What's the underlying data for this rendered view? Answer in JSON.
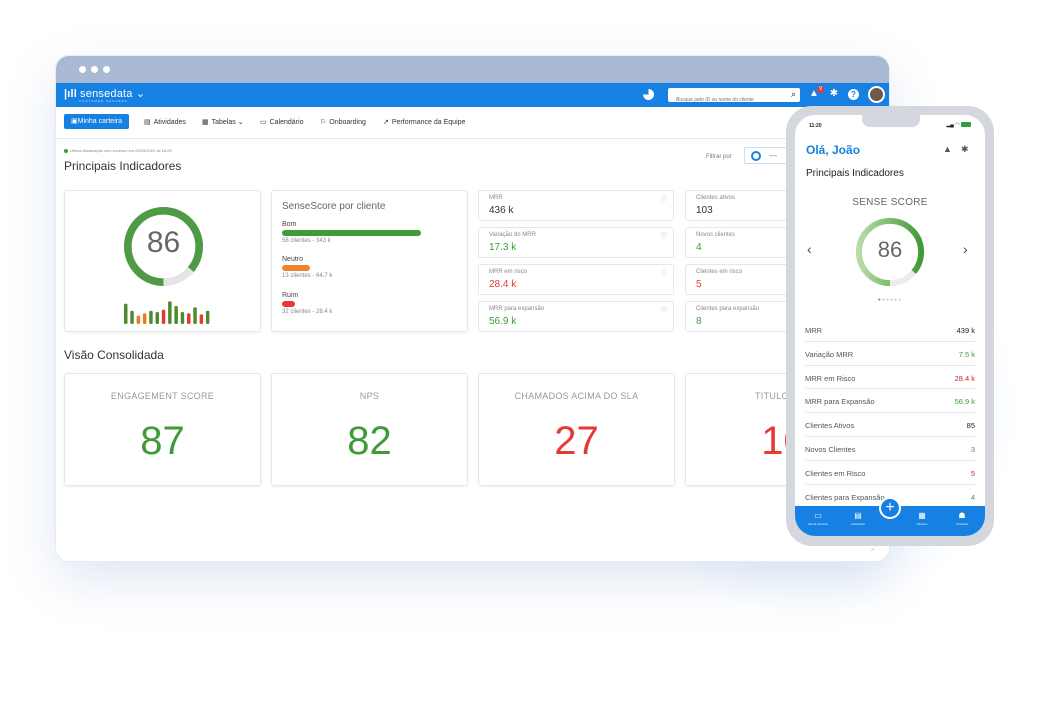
{
  "app": {
    "brand": "sensedata",
    "brand_caret": "⌄",
    "brand_sub": "CUSTOMER SUCCESS",
    "search_placeholder": "Busque pelo ID ou nome do cliente",
    "notification_count": "9"
  },
  "nav": [
    {
      "label": "Minha carteira",
      "icon": "wallet-icon",
      "active": true
    },
    {
      "label": "Atividades",
      "icon": "document-icon"
    },
    {
      "label": "Tabelas",
      "icon": "table-icon",
      "caret": "⌄"
    },
    {
      "label": "Calendário",
      "icon": "calendar-icon"
    },
    {
      "label": "Onboarding",
      "icon": "onboarding-icon"
    },
    {
      "label": "Performance da Equipe",
      "icon": "trend-icon"
    }
  ],
  "dashboard": {
    "update_text": "Última Atualização com sucesso em 25/03/2022 às 16:29",
    "title": "Principais Indicadores",
    "filter_label": "Filtrar por",
    "filter_value": "—",
    "score": "86",
    "score_fraction": 0.86,
    "sparkline": [
      {
        "h": 0.85,
        "color": "#4f8a2e"
      },
      {
        "h": 0.55,
        "color": "#4f8a2e"
      },
      {
        "h": 0.35,
        "color": "#e67e22"
      },
      {
        "h": 0.45,
        "color": "#e67e22"
      },
      {
        "h": 0.55,
        "color": "#4f8a2e"
      },
      {
        "h": 0.5,
        "color": "#4f8a2e"
      },
      {
        "h": 0.6,
        "color": "#e53935"
      },
      {
        "h": 0.95,
        "color": "#4f8a2e"
      },
      {
        "h": 0.75,
        "color": "#4f8a2e"
      },
      {
        "h": 0.5,
        "color": "#4f8a2e"
      },
      {
        "h": 0.45,
        "color": "#e53935"
      },
      {
        "h": 0.7,
        "color": "#4f8a2e"
      },
      {
        "h": 0.4,
        "color": "#e53935"
      },
      {
        "h": 0.55,
        "color": "#4f8a2e"
      }
    ],
    "sensescore": {
      "title": "SenseScore por cliente",
      "rows": [
        {
          "label": "Bom",
          "sub": "58 clientes - 343 k",
          "color": "#3f9b35",
          "fraction": 0.75
        },
        {
          "label": "Neutro",
          "sub": "13 clientes - 64.7 k",
          "color": "#f0812d",
          "fraction": 0.15
        },
        {
          "label": "Ruim",
          "sub": "32 clientes - 28.4 k",
          "color": "#e53935",
          "fraction": 0.07
        }
      ]
    },
    "kpis_left": [
      {
        "label": "MRR",
        "value": "436 k",
        "color": "#333333"
      },
      {
        "label": "Variação do MRR",
        "value": "17.3 k",
        "color": "#3f9b35"
      },
      {
        "label": "MRR em risco",
        "value": "28.4 k",
        "color": "#e53935"
      },
      {
        "label": "MRR para expansão",
        "value": "56.9 k",
        "color": "#3f9b35"
      }
    ],
    "kpis_right": [
      {
        "label": "Clientes ativos",
        "value": "103",
        "color": "#333333"
      },
      {
        "label": "Novos clientes",
        "value": "4",
        "color": "#3f9b35"
      },
      {
        "label": "Clientes em risco",
        "value": "5",
        "color": "#e53935"
      },
      {
        "label": "Clientes para expansão",
        "value": "8",
        "color": "#3f9b35"
      }
    ],
    "info_icon": "ⓘ",
    "consolidated_title": "Visão Consolidada",
    "consolidated": [
      {
        "label": "ENGAGEMENT SCORE",
        "value": "87",
        "color": "#3f9b35"
      },
      {
        "label": "NPS",
        "value": "82",
        "color": "#3f9b35"
      },
      {
        "label": "CHAMADOS ACIMA DO SLA",
        "value": "27",
        "color": "#e53935"
      },
      {
        "label": "TITULOS EM",
        "value": "10",
        "color": "#e53935"
      }
    ]
  },
  "phone": {
    "time": "11:20",
    "greeting": "Olá,  João",
    "section": "Principais Indicadores",
    "sense_label": "SENSE SCORE",
    "score": "86",
    "prev": "‹",
    "next": "›",
    "rows": [
      {
        "label": "MRR",
        "value": "439 k",
        "color": "#222222"
      },
      {
        "label": "Variação MRR",
        "value": "7.5 k",
        "color": "#3f9b35"
      },
      {
        "label": "MRR em Risco",
        "value": "28.4 k",
        "color": "#c62828"
      },
      {
        "label": "MRR para Expansão",
        "value": "56.9 k",
        "color": "#3f9b35"
      },
      {
        "label": "Clientes Ativos",
        "value": "85",
        "color": "#222222"
      },
      {
        "label": "Novos Clientes",
        "value": "3",
        "color": "#3f9b35"
      },
      {
        "label": "Clientes em Risco",
        "value": "5",
        "color": "#c62828"
      },
      {
        "label": "Clientes para Expansão",
        "value": "4",
        "color": "#3f9b35"
      }
    ],
    "tabs": [
      {
        "label": "Minha Carteira",
        "icon": "wallet-icon"
      },
      {
        "label": "Atividades",
        "icon": "document-icon"
      },
      {
        "label": "Clientes",
        "icon": "building-icon"
      },
      {
        "label": "Usuários",
        "icon": "users-icon"
      }
    ],
    "fab": "+"
  }
}
